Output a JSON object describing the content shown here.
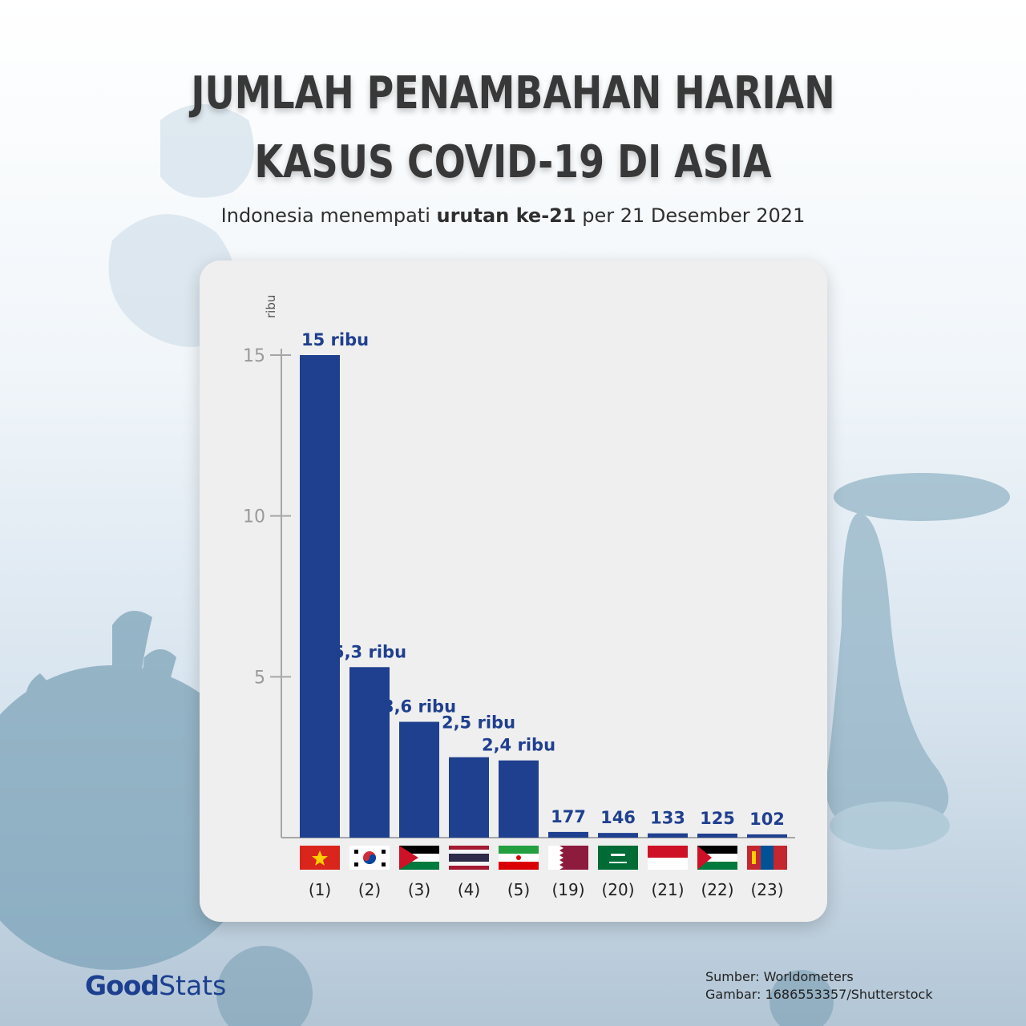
{
  "title_line1": "JUMLAH PENAMBAHAN HARIAN",
  "title_line2": "KASUS COVID-19 DI ASIA",
  "subtitle": {
    "pre": "Indonesia menempati ",
    "bold": "urutan ke-21",
    "post": " per 21 Desember 2021"
  },
  "colors": {
    "bar": "#1f3f8f",
    "label": "#1f3f8f",
    "axis": "#a6a6a6",
    "title": "#383838"
  },
  "chart_data": {
    "type": "bar",
    "ylabel": "ribu",
    "yticks": [
      "15",
      "10",
      "5"
    ],
    "ylim": [
      0,
      15
    ],
    "categories": [
      "(1)",
      "(2)",
      "(3)",
      "(4)",
      "(5)",
      "(19)",
      "(20)",
      "(21)",
      "(22)",
      "(23)"
    ],
    "flags": [
      "vietnam-flag-icon",
      "south-korea-flag-icon",
      "jordan-flag-icon",
      "thailand-flag-icon",
      "iran-flag-icon",
      "qatar-flag-icon",
      "saudi-arabia-flag-icon",
      "indonesia-flag-icon",
      "palestine-flag-icon",
      "mongolia-flag-icon"
    ],
    "values": [
      15,
      5.3,
      3.6,
      2.5,
      2.4,
      0.177,
      0.146,
      0.133,
      0.125,
      0.102
    ],
    "labels": [
      "15 ribu",
      "5,3 ribu",
      "3,6 ribu",
      "",
      "2,4 ribu",
      "177",
      "146",
      "133",
      "125",
      "102"
    ],
    "annotation": "2,5 ribu"
  },
  "source": {
    "line1": "Sumber: Worldometers",
    "line2": "Gambar: 1686553357/Shutterstock"
  },
  "logo": {
    "part1": "Good",
    "part2": "Stats"
  }
}
